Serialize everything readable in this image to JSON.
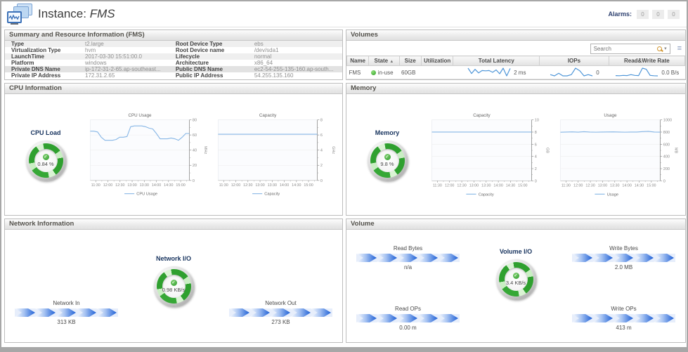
{
  "header": {
    "title_prefix": "Instance:",
    "title_name": "FMS",
    "alarms_label": "Alarms:",
    "alarm_counts": [
      "0",
      "0",
      "0"
    ]
  },
  "panels": {
    "summary": {
      "title": "Summary and Resource Information (FMS)",
      "rows": [
        {
          "label_left": "Type",
          "value_left": "t2.large",
          "label_right": "Root Device Type",
          "value_right": "ebs"
        },
        {
          "label_left": "Virtualization Type",
          "value_left": "hvm",
          "label_right": "Root Device name",
          "value_right": "/dev/sda1"
        },
        {
          "label_left": "LaunchTime",
          "value_left": "2017-03-30 15:51:00.0",
          "label_right": "Lifecycle",
          "value_right": "normal"
        },
        {
          "label_left": "Platform",
          "value_left": "windows",
          "label_right": "Architecture",
          "value_right": "x86_64"
        },
        {
          "label_left": "Private DNS Name",
          "value_left": "ip-172-31-2-65.ap-southeast...",
          "label_right": "Public DNS Name",
          "value_right": "ec2-54-255-135-160.ap-south..."
        },
        {
          "label_left": "Private IP Address",
          "value_left": "172.31.2.65",
          "label_right": "Public IP Address",
          "value_right": "54.255.135.160"
        }
      ]
    },
    "volumes": {
      "title": "Volumes",
      "search_placeholder": "Search",
      "columns": [
        "Name",
        "State",
        "Size",
        "Utilization",
        "Total Latency",
        "IOPs",
        "Read&Write Rate"
      ],
      "sort_arrow": "▲",
      "row": {
        "name": "FMS",
        "state": "in-use",
        "size": "60GB",
        "utilization": "",
        "latency_value": "2 ms",
        "iops_value": "0",
        "rw_value": "0.0 B/s"
      }
    },
    "cpu": {
      "title": "CPU Information",
      "gauge": {
        "label": "CPU Load",
        "value": "0.84 %"
      }
    },
    "memory": {
      "title": "Memory",
      "gauge": {
        "label": "Memory",
        "value": "9.8 %"
      }
    },
    "network": {
      "title": "Network Information",
      "gauge": {
        "label": "Network I/O",
        "value": "0.98 KB/s"
      },
      "flows": [
        {
          "label": "Network In",
          "value": "313 KB"
        },
        {
          "label": "Network Out",
          "value": "273 KB"
        }
      ]
    },
    "volume": {
      "title": "Volume",
      "gauge": {
        "label": "Volume I/O",
        "value": "3.4 KB/s"
      },
      "flows": [
        {
          "label": "Read Bytes",
          "value": "n/a"
        },
        {
          "label": "Write Bytes",
          "value": "2.0 MB"
        },
        {
          "label": "Read OPs",
          "value": "0.00 m"
        },
        {
          "label": "Write OPs",
          "value": "413 m"
        }
      ]
    }
  },
  "chart_data": [
    {
      "type": "line",
      "title": "CPU Usage",
      "legend": "CPU Usage",
      "ylabel": "MHz",
      "ylim": [
        0,
        80
      ],
      "yticks": [
        0,
        20,
        40,
        60,
        80
      ],
      "grid": true,
      "legend_position": "bottom",
      "x_ticks": [
        "11:30",
        "12:00",
        "12:30",
        "13:00",
        "13:30",
        "14:00",
        "14:30",
        "15:00"
      ],
      "values": [
        65,
        65,
        64,
        57,
        53,
        53,
        53,
        54,
        57,
        57,
        58,
        71,
        72,
        72,
        72,
        71,
        69,
        68,
        62,
        55,
        55,
        55,
        56,
        55,
        53,
        57,
        62,
        62
      ]
    },
    {
      "type": "line",
      "title": "Capacity",
      "legend": "Capacity",
      "ylabel": "GHz",
      "ylim": [
        0,
        8
      ],
      "yticks": [
        0,
        2,
        4,
        6,
        8
      ],
      "grid": true,
      "legend_position": "bottom",
      "x_ticks": [
        "11:30",
        "12:00",
        "12:30",
        "13:00",
        "13:30",
        "14:00",
        "14:30",
        "15:00"
      ],
      "values": [
        6.1,
        6.1,
        6.1,
        6.1,
        6.1,
        6.1,
        6.1,
        6.1,
        6.1,
        6.1,
        6.1,
        6.1
      ]
    },
    {
      "type": "line",
      "title": "Capacity",
      "legend": "Capacity",
      "ylabel": "GB",
      "ylim": [
        0,
        10
      ],
      "yticks": [
        0,
        2,
        4,
        6,
        8,
        10
      ],
      "grid": true,
      "legend_position": "bottom",
      "x_ticks": [
        "11:30",
        "12:00",
        "12:30",
        "13:00",
        "13:30",
        "14:00",
        "14:30",
        "15:00"
      ],
      "values": [
        8,
        8,
        8,
        8,
        8,
        8,
        8,
        8,
        8,
        8,
        8,
        8
      ]
    },
    {
      "type": "line",
      "title": "Usage",
      "legend": "Usage",
      "ylabel": "MB",
      "ylim": [
        0,
        1000
      ],
      "yticks": [
        0,
        200,
        400,
        600,
        800,
        1000
      ],
      "grid": true,
      "legend_position": "bottom",
      "x_ticks": [
        "11:30",
        "12:00",
        "12:30",
        "13:00",
        "13:30",
        "14:00",
        "14:30",
        "15:00"
      ],
      "values": [
        797,
        800,
        803,
        799,
        806,
        801,
        798,
        800,
        802,
        804,
        800,
        798,
        801,
        800,
        807,
        812,
        800,
        799
      ]
    },
    {
      "type": "sparkline",
      "name": "total-latency",
      "unit_label": "2 ms",
      "values": [
        3,
        1.2,
        2.6,
        1.4,
        2.2,
        2.1,
        2.2,
        1.6,
        2.4,
        1.1,
        3,
        0.4,
        2.9
      ]
    },
    {
      "type": "sparkline",
      "name": "iops",
      "unit_label": "0",
      "values": [
        0.6,
        0.5,
        0.7,
        0.5,
        0.5,
        0.6,
        1.1,
        0.9,
        0.5,
        0.6,
        0.5
      ]
    },
    {
      "type": "sparkline",
      "name": "read-write-rate",
      "unit_label": "0.0 B/s",
      "values": [
        0.8,
        0.7,
        0.9,
        0.8,
        1.4,
        0.9,
        0.8,
        5.5,
        4.8,
        0.9,
        0.7,
        0.6
      ]
    }
  ],
  "colors": {
    "chart_line": "#86b6e6",
    "spark_line": "#4f96d8",
    "gauge_green": "#2fa02f",
    "flow_blue": "#1d5fd6",
    "state_ok": "#2f9e25",
    "panel_border": "#bdbdbd"
  }
}
